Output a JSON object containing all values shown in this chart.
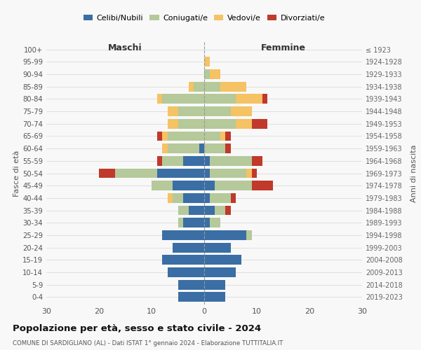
{
  "age_groups": [
    "0-4",
    "5-9",
    "10-14",
    "15-19",
    "20-24",
    "25-29",
    "30-34",
    "35-39",
    "40-44",
    "45-49",
    "50-54",
    "55-59",
    "60-64",
    "65-69",
    "70-74",
    "75-79",
    "80-84",
    "85-89",
    "90-94",
    "95-99",
    "100+"
  ],
  "birth_years": [
    "2019-2023",
    "2014-2018",
    "2009-2013",
    "2004-2008",
    "1999-2003",
    "1994-1998",
    "1989-1993",
    "1984-1988",
    "1979-1983",
    "1974-1978",
    "1969-1973",
    "1964-1968",
    "1959-1963",
    "1954-1958",
    "1949-1953",
    "1944-1948",
    "1939-1943",
    "1934-1938",
    "1929-1933",
    "1924-1928",
    "≤ 1923"
  ],
  "maschi": {
    "celibi": [
      5,
      5,
      7,
      8,
      6,
      8,
      4,
      3,
      4,
      6,
      9,
      4,
      1,
      0,
      0,
      0,
      0,
      0,
      0,
      0,
      0
    ],
    "coniugati": [
      0,
      0,
      0,
      0,
      0,
      0,
      1,
      2,
      2,
      4,
      8,
      4,
      6,
      7,
      5,
      5,
      8,
      2,
      0,
      0,
      0
    ],
    "vedovi": [
      0,
      0,
      0,
      0,
      0,
      0,
      0,
      0,
      1,
      0,
      0,
      0,
      1,
      1,
      2,
      2,
      1,
      1,
      0,
      0,
      0
    ],
    "divorziati": [
      0,
      0,
      0,
      0,
      0,
      0,
      0,
      0,
      0,
      0,
      3,
      1,
      0,
      1,
      0,
      0,
      0,
      0,
      0,
      0,
      0
    ]
  },
  "femmine": {
    "nubili": [
      4,
      4,
      6,
      7,
      5,
      8,
      1,
      2,
      1,
      2,
      1,
      1,
      0,
      0,
      0,
      0,
      0,
      0,
      0,
      0,
      0
    ],
    "coniugate": [
      0,
      0,
      0,
      0,
      0,
      1,
      2,
      2,
      4,
      7,
      7,
      8,
      4,
      3,
      6,
      5,
      6,
      3,
      1,
      0,
      0
    ],
    "vedove": [
      0,
      0,
      0,
      0,
      0,
      0,
      0,
      0,
      0,
      0,
      1,
      0,
      0,
      1,
      3,
      4,
      5,
      5,
      2,
      1,
      0
    ],
    "divorziate": [
      0,
      0,
      0,
      0,
      0,
      0,
      0,
      1,
      1,
      4,
      1,
      2,
      1,
      1,
      3,
      0,
      1,
      0,
      0,
      0,
      0
    ]
  },
  "colors": {
    "celibi": "#3a6ea5",
    "coniugati": "#b5c99a",
    "vedovi": "#f5c264",
    "divorziati": "#c0392b"
  },
  "xlim": 30,
  "title": "Popolazione per età, sesso e stato civile - 2024",
  "subtitle": "COMUNE DI SARDIGLIANO (AL) - Dati ISTAT 1° gennaio 2024 - Elaborazione TUTTITALIA.IT",
  "ylabel_left": "Fasce di età",
  "ylabel_right": "Anni di nascita",
  "xlabel_left": "Maschi",
  "xlabel_right": "Femmine",
  "legend_labels": [
    "Celibi/Nubili",
    "Coniugati/e",
    "Vedovi/e",
    "Divorziati/e"
  ],
  "bg_color": "#f8f8f8"
}
